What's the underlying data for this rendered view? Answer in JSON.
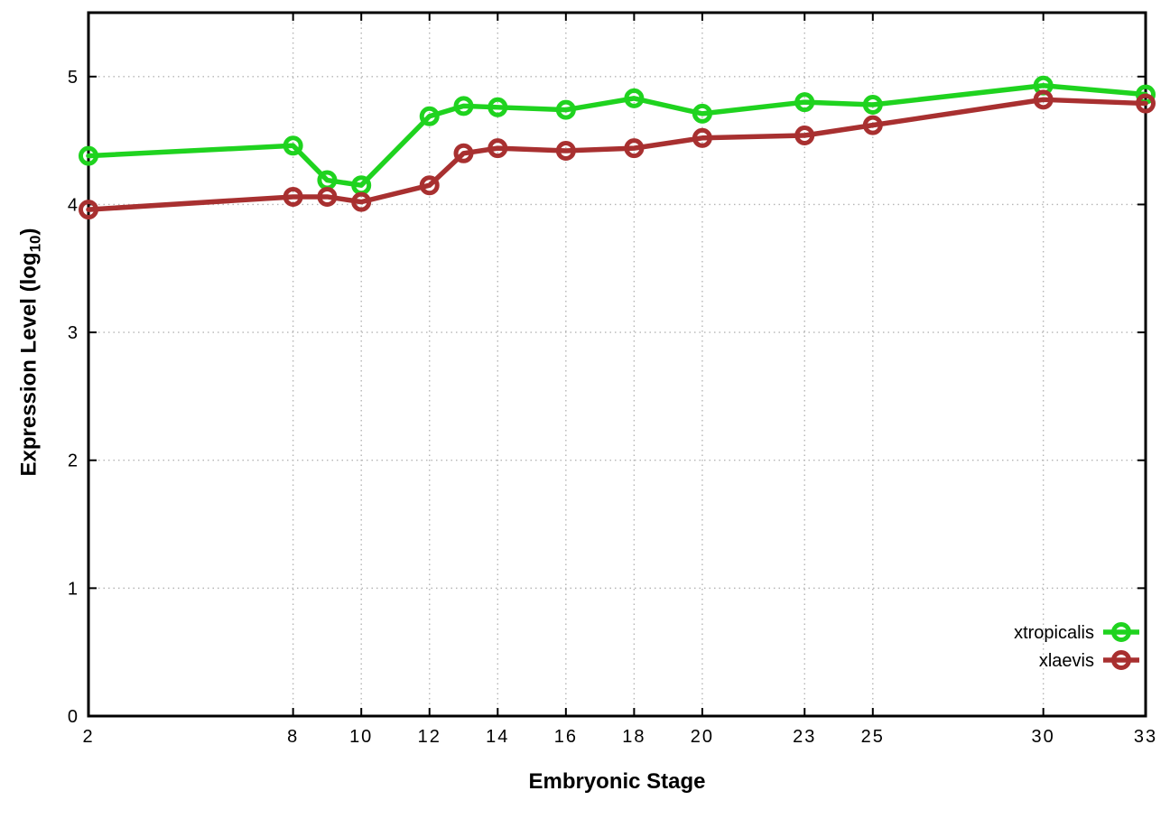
{
  "chart_data": {
    "type": "line",
    "title": "",
    "xlabel": "Embryonic Stage",
    "ylabel": "Expression Level (log10)",
    "ylabel_main": "Expression Level (log",
    "ylabel_sub": "10",
    "ylabel_close": ")",
    "xlim": [
      2,
      33
    ],
    "ylim": [
      0,
      5.5
    ],
    "x_ticks": [
      2,
      8,
      10,
      12,
      14,
      16,
      18,
      20,
      23,
      25,
      30,
      33
    ],
    "y_ticks": [
      0,
      1,
      2,
      3,
      4,
      5
    ],
    "grid": true,
    "grid_style": "dotted",
    "legend_position": "inside-right-lower",
    "background_color": "#ffffff",
    "frame_color": "#000000",
    "grid_color": "#b5b5b5",
    "x": [
      2,
      8,
      9,
      10,
      12,
      13,
      14,
      16,
      18,
      20,
      23,
      25,
      30,
      33
    ],
    "series": [
      {
        "name": "xtropicalis",
        "color": "#1fd31f",
        "marker": "open-circle",
        "values": [
          4.38,
          4.46,
          4.19,
          4.15,
          4.69,
          4.77,
          4.76,
          4.74,
          4.83,
          4.71,
          4.8,
          4.78,
          4.93,
          4.86
        ]
      },
      {
        "name": "xlaevis",
        "color": "#a83030",
        "marker": "open-circle",
        "values": [
          3.96,
          4.06,
          4.06,
          4.02,
          4.15,
          4.4,
          4.44,
          4.42,
          4.44,
          4.52,
          4.54,
          4.62,
          4.82,
          4.79
        ]
      }
    ]
  }
}
